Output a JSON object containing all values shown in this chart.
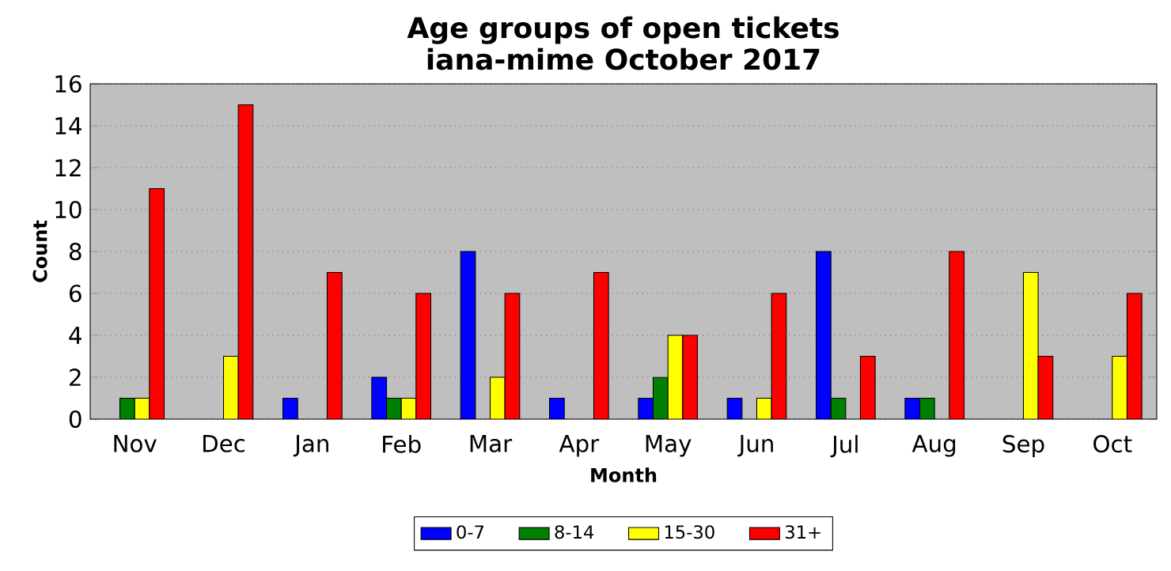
{
  "chart_data": {
    "type": "bar",
    "title": "Age groups of open tickets",
    "subtitle": "iana-mime October 2017",
    "xlabel": "Month",
    "ylabel": "Count",
    "categories": [
      "Nov",
      "Dec",
      "Jan",
      "Feb",
      "Mar",
      "Apr",
      "May",
      "Jun",
      "Jul",
      "Aug",
      "Sep",
      "Oct"
    ],
    "series": [
      {
        "name": "0-7",
        "color": "#0000ff",
        "values": [
          0,
          0,
          1,
          2,
          8,
          1,
          1,
          1,
          8,
          1,
          0,
          0
        ]
      },
      {
        "name": "8-14",
        "color": "#008000",
        "values": [
          1,
          0,
          0,
          1,
          0,
          0,
          2,
          0,
          1,
          1,
          0,
          0
        ]
      },
      {
        "name": "15-30",
        "color": "#ffff00",
        "values": [
          1,
          3,
          0,
          1,
          2,
          0,
          4,
          1,
          0,
          0,
          7,
          3
        ]
      },
      {
        "name": "31+",
        "color": "#ff0000",
        "values": [
          11,
          15,
          7,
          6,
          6,
          7,
          4,
          6,
          3,
          8,
          3,
          6
        ]
      }
    ],
    "ylim": [
      0,
      16
    ],
    "yticks": [
      0,
      2,
      4,
      6,
      8,
      10,
      12,
      14,
      16
    ],
    "grid": "y",
    "legend": "bottom"
  }
}
